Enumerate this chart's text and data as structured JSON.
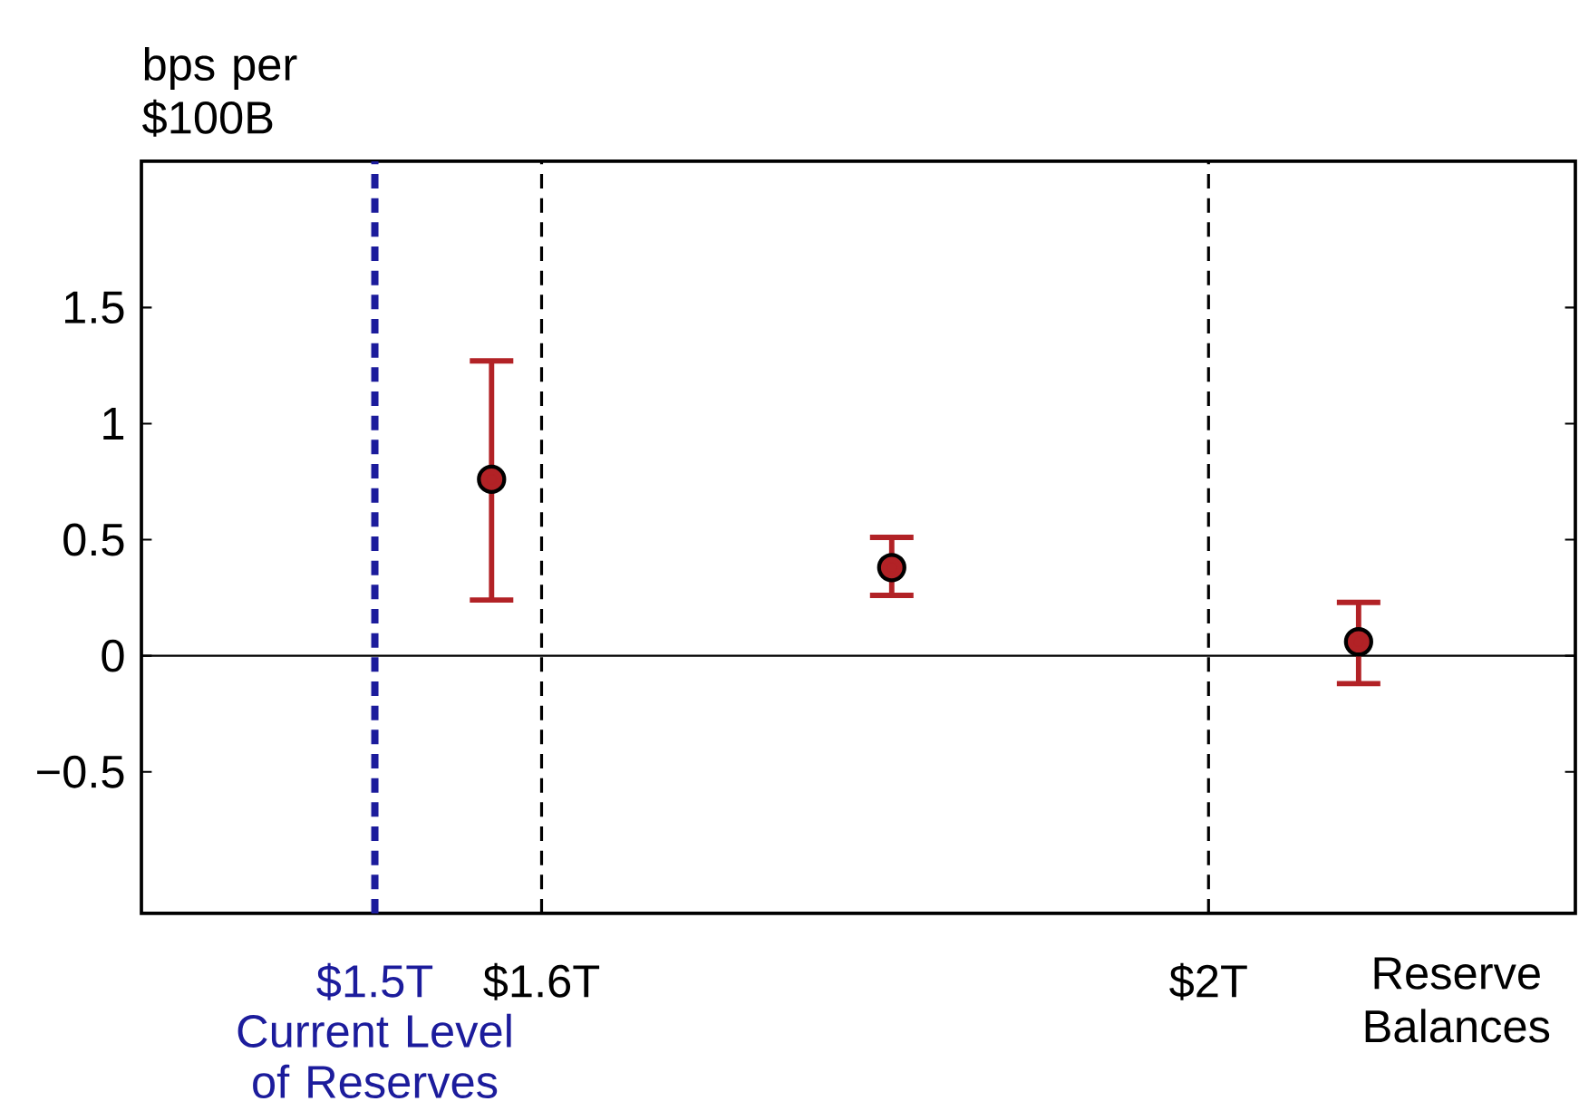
{
  "chart_data": {
    "type": "scatter",
    "ylabel": "bps per $100B",
    "xlabel": "Reserve Balances",
    "xlim": [
      1.36,
      2.22
    ],
    "ylim": [
      -1.11,
      2.13
    ],
    "xticks": [
      {
        "value": 1.5,
        "label": "$1.5T"
      },
      {
        "value": 1.6,
        "label": "$1.6T"
      },
      {
        "value": 2,
        "label": "$2T"
      }
    ],
    "yticks": [
      {
        "value": -0.5,
        "label": "−0.5"
      },
      0,
      0.5,
      1,
      1.5
    ],
    "marker": "circle",
    "series": [
      {
        "color": "#b22226",
        "x": [
          1.57,
          1.81,
          2.09
        ],
        "values": [
          0.76,
          0.38,
          0.06
        ],
        "errors": [
          [
            0.24,
            1.27
          ],
          [
            0.26,
            0.51
          ],
          [
            -0.12,
            0.23
          ]
        ]
      }
    ],
    "ref_lines": [
      {
        "axis": "x",
        "value": 1.5,
        "label": "Current Level of Reserves",
        "color": "#1c1c9c",
        "line_style": "dashed"
      },
      {
        "axis": "x",
        "value": 1.6,
        "color": "#000000",
        "line_style": "dashed"
      },
      {
        "axis": "x",
        "value": 2,
        "color": "#000000",
        "line_style": "dashed"
      },
      {
        "axis": "y",
        "value": 0,
        "color": "#000000",
        "line_style": "solid"
      }
    ]
  }
}
